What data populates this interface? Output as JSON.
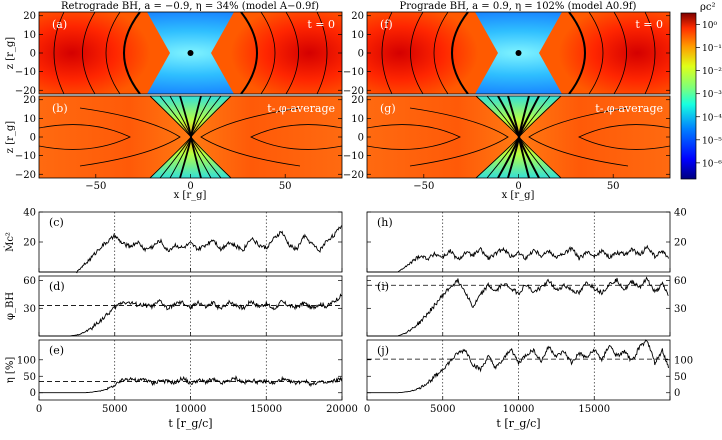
{
  "figure": {
    "left_title": "Retrograde BH, a = −0.9, η = 34% (model A−0.9f)",
    "right_title": "Prograde BH, a = 0.9, η = 102% (model A0.9f)",
    "colorbar_label": "ρc²"
  },
  "chart_data": [
    {
      "type": "heatmap",
      "panel": "(a)",
      "column": "left",
      "annotation": "t = 0",
      "ylabel": "z [r_g]",
      "xlim": [
        -80,
        80
      ],
      "ylim": [
        -22,
        22
      ],
      "yticks": [
        -20,
        -10,
        0,
        10,
        20
      ],
      "field": "initial torus density, empty funnel near axis",
      "black_hole_marker": [
        0,
        0
      ]
    },
    {
      "type": "heatmap",
      "panel": "(b)",
      "column": "left",
      "annotation": "t-,φ-average",
      "ylabel": "z [r_g]",
      "xlabel": "x [r_g]",
      "xlim": [
        -80,
        80
      ],
      "ylim": [
        -22,
        22
      ],
      "xticks": [
        -50,
        0,
        50
      ],
      "yticks": [
        -20,
        -10,
        0,
        10,
        20
      ],
      "field": "time- and azimuth-averaged density with jet funnel"
    },
    {
      "type": "heatmap",
      "panel": "(f)",
      "column": "right",
      "annotation": "t = 0",
      "xlim": [
        -80,
        80
      ],
      "ylim": [
        -22,
        22
      ],
      "yticks": [
        -20,
        -10,
        0,
        10,
        20
      ],
      "black_hole_marker": [
        0,
        0
      ]
    },
    {
      "type": "heatmap",
      "panel": "(g)",
      "column": "right",
      "annotation": "t-,φ-average",
      "xlabel": "x [r_g]",
      "xlim": [
        -80,
        80
      ],
      "ylim": [
        -22,
        22
      ],
      "xticks": [
        -50,
        0,
        50
      ],
      "yticks": [
        -20,
        -10,
        0,
        10,
        20
      ]
    },
    {
      "type": "colorbar",
      "label": "ρc²",
      "ticks": [
        "10⁰",
        "10⁻¹",
        "10⁻²",
        "10⁻³",
        "10⁻⁴",
        "10⁻⁵",
        "10⁻⁶"
      ],
      "range_log10": [
        -6.7,
        0.5
      ]
    },
    {
      "type": "line",
      "panel": "(c)",
      "column": "left",
      "ylabel": "Ṁc²",
      "xlim": [
        0,
        20000
      ],
      "ylim": [
        0,
        40
      ],
      "yticks": [
        20,
        40
      ],
      "x": [
        0,
        500,
        1000,
        1500,
        2000,
        2500,
        3000,
        3500,
        4000,
        4500,
        5000,
        5500,
        6000,
        6500,
        7000,
        7500,
        8000,
        8500,
        9000,
        9500,
        10000,
        10500,
        11000,
        11500,
        12000,
        12500,
        13000,
        13500,
        14000,
        14500,
        15000,
        15500,
        16000,
        16500,
        17000,
        17500,
        18000,
        18500,
        19000,
        19500,
        20000
      ],
      "values": [
        0,
        0,
        0,
        0,
        0,
        0,
        5,
        10,
        16,
        20,
        24,
        19,
        17,
        20,
        15,
        17,
        21,
        14,
        18,
        16,
        19,
        15,
        18,
        22,
        15,
        20,
        17,
        15,
        23,
        18,
        16,
        22,
        27,
        18,
        15,
        24,
        19,
        14,
        21,
        25,
        31
      ]
    },
    {
      "type": "line",
      "panel": "(d)",
      "column": "left",
      "ylabel": "φ_BH",
      "xlim": [
        0,
        20000
      ],
      "ylim": [
        0,
        65
      ],
      "yticks": [
        30,
        60
      ],
      "mean": 33,
      "x": [
        0,
        500,
        1000,
        1500,
        2000,
        2500,
        3000,
        3500,
        4000,
        4500,
        5000,
        5500,
        6000,
        6500,
        7000,
        7500,
        8000,
        8500,
        9000,
        9500,
        10000,
        10500,
        11000,
        11500,
        12000,
        12500,
        13000,
        13500,
        14000,
        14500,
        15000,
        15500,
        16000,
        16500,
        17000,
        17500,
        18000,
        18500,
        19000,
        19500,
        20000
      ],
      "values": [
        0,
        0,
        0,
        0,
        0,
        1,
        4,
        9,
        16,
        23,
        31,
        37,
        36,
        34,
        33,
        32,
        38,
        29,
        35,
        36,
        30,
        37,
        31,
        36,
        29,
        37,
        34,
        30,
        38,
        32,
        35,
        29,
        37,
        33,
        31,
        36,
        30,
        35,
        32,
        38,
        44
      ]
    },
    {
      "type": "line",
      "panel": "(e)",
      "column": "left",
      "ylabel": "η [%]",
      "xlabel": "t [r_g/c]",
      "xlim": [
        0,
        20000
      ],
      "ylim": [
        -22,
        160
      ],
      "yticks": [
        0,
        50,
        100
      ],
      "mean": 34,
      "xticks": [
        0,
        5000,
        10000,
        15000,
        20000
      ],
      "x": [
        0,
        500,
        1000,
        1500,
        2000,
        2500,
        3000,
        3500,
        4000,
        4500,
        5000,
        5500,
        6000,
        6500,
        7000,
        7500,
        8000,
        8500,
        9000,
        9500,
        10000,
        10500,
        11000,
        11500,
        12000,
        12500,
        13000,
        13500,
        14000,
        14500,
        15000,
        15500,
        16000,
        16500,
        17000,
        17500,
        18000,
        18500,
        19000,
        19500,
        20000
      ],
      "values": [
        0,
        0,
        0,
        0,
        0,
        0,
        0,
        2,
        5,
        12,
        22,
        38,
        45,
        35,
        42,
        28,
        38,
        34,
        30,
        45,
        27,
        38,
        33,
        40,
        28,
        36,
        44,
        30,
        38,
        32,
        35,
        28,
        41,
        34,
        30,
        37,
        25,
        33,
        29,
        36,
        45
      ]
    },
    {
      "type": "line",
      "panel": "(h)",
      "column": "right",
      "xlim": [
        0,
        20000
      ],
      "ylim": [
        0,
        40
      ],
      "yticks": [
        20,
        40
      ],
      "ytick_side": "right",
      "x": [
        0,
        500,
        1000,
        1500,
        2000,
        2500,
        3000,
        3500,
        4000,
        4500,
        5000,
        5500,
        6000,
        6500,
        7000,
        7500,
        8000,
        8500,
        9000,
        9500,
        10000,
        10500,
        11000,
        11500,
        12000,
        12500,
        13000,
        13500,
        14000,
        14500,
        15000,
        15500,
        16000,
        16500,
        17000,
        17500,
        18000,
        18500,
        19000,
        19500,
        19900
      ],
      "values": [
        0,
        0,
        0,
        0,
        0,
        3,
        7,
        11,
        9,
        12,
        10,
        14,
        8,
        13,
        11,
        15,
        9,
        12,
        16,
        10,
        13,
        9,
        15,
        11,
        14,
        10,
        12,
        16,
        9,
        13,
        11,
        14,
        10,
        13,
        12,
        15,
        11,
        17,
        10,
        14,
        9
      ]
    },
    {
      "type": "line",
      "panel": "(i)",
      "column": "right",
      "xlim": [
        0,
        20000
      ],
      "ylim": [
        0,
        65
      ],
      "yticks": [
        30,
        60
      ],
      "ytick_side": "right",
      "mean": 55,
      "x": [
        0,
        500,
        1000,
        1500,
        2000,
        2500,
        3000,
        3500,
        4000,
        4500,
        5000,
        5500,
        6000,
        6500,
        7000,
        7500,
        8000,
        8500,
        9000,
        9500,
        10000,
        10500,
        11000,
        11500,
        12000,
        12500,
        13000,
        13500,
        14000,
        14500,
        15000,
        15500,
        16000,
        16500,
        17000,
        17500,
        18000,
        18500,
        19000,
        19500,
        19900
      ],
      "values": [
        0,
        0,
        0,
        0,
        0,
        3,
        8,
        15,
        24,
        34,
        44,
        53,
        60,
        48,
        31,
        45,
        55,
        48,
        57,
        52,
        46,
        56,
        47,
        53,
        60,
        49,
        55,
        50,
        46,
        58,
        52,
        47,
        56,
        61,
        50,
        59,
        53,
        62,
        47,
        56,
        44
      ]
    },
    {
      "type": "line",
      "panel": "(j)",
      "column": "right",
      "xlabel": "t [r_g/c]",
      "xlim": [
        0,
        20000
      ],
      "ylim": [
        -22,
        160
      ],
      "yticks": [
        0,
        50,
        100
      ],
      "ytick_side": "right",
      "mean": 102,
      "xticks": [
        0,
        5000,
        10000,
        15000
      ],
      "x": [
        0,
        500,
        1000,
        1500,
        2000,
        2500,
        3000,
        3500,
        4000,
        4500,
        5000,
        5500,
        6000,
        6500,
        7000,
        7500,
        8000,
        8500,
        9000,
        9500,
        10000,
        10500,
        11000,
        11500,
        12000,
        12500,
        13000,
        13500,
        14000,
        14500,
        15000,
        15500,
        16000,
        16500,
        17000,
        17500,
        18000,
        18500,
        19000,
        19500,
        19900
      ],
      "values": [
        0,
        0,
        0,
        0,
        0,
        2,
        6,
        15,
        30,
        50,
        72,
        95,
        120,
        130,
        85,
        70,
        110,
        75,
        100,
        135,
        90,
        115,
        130,
        95,
        140,
        110,
        125,
        90,
        120,
        105,
        130,
        100,
        145,
        110,
        125,
        95,
        140,
        160,
        90,
        130,
        75
      ]
    }
  ]
}
